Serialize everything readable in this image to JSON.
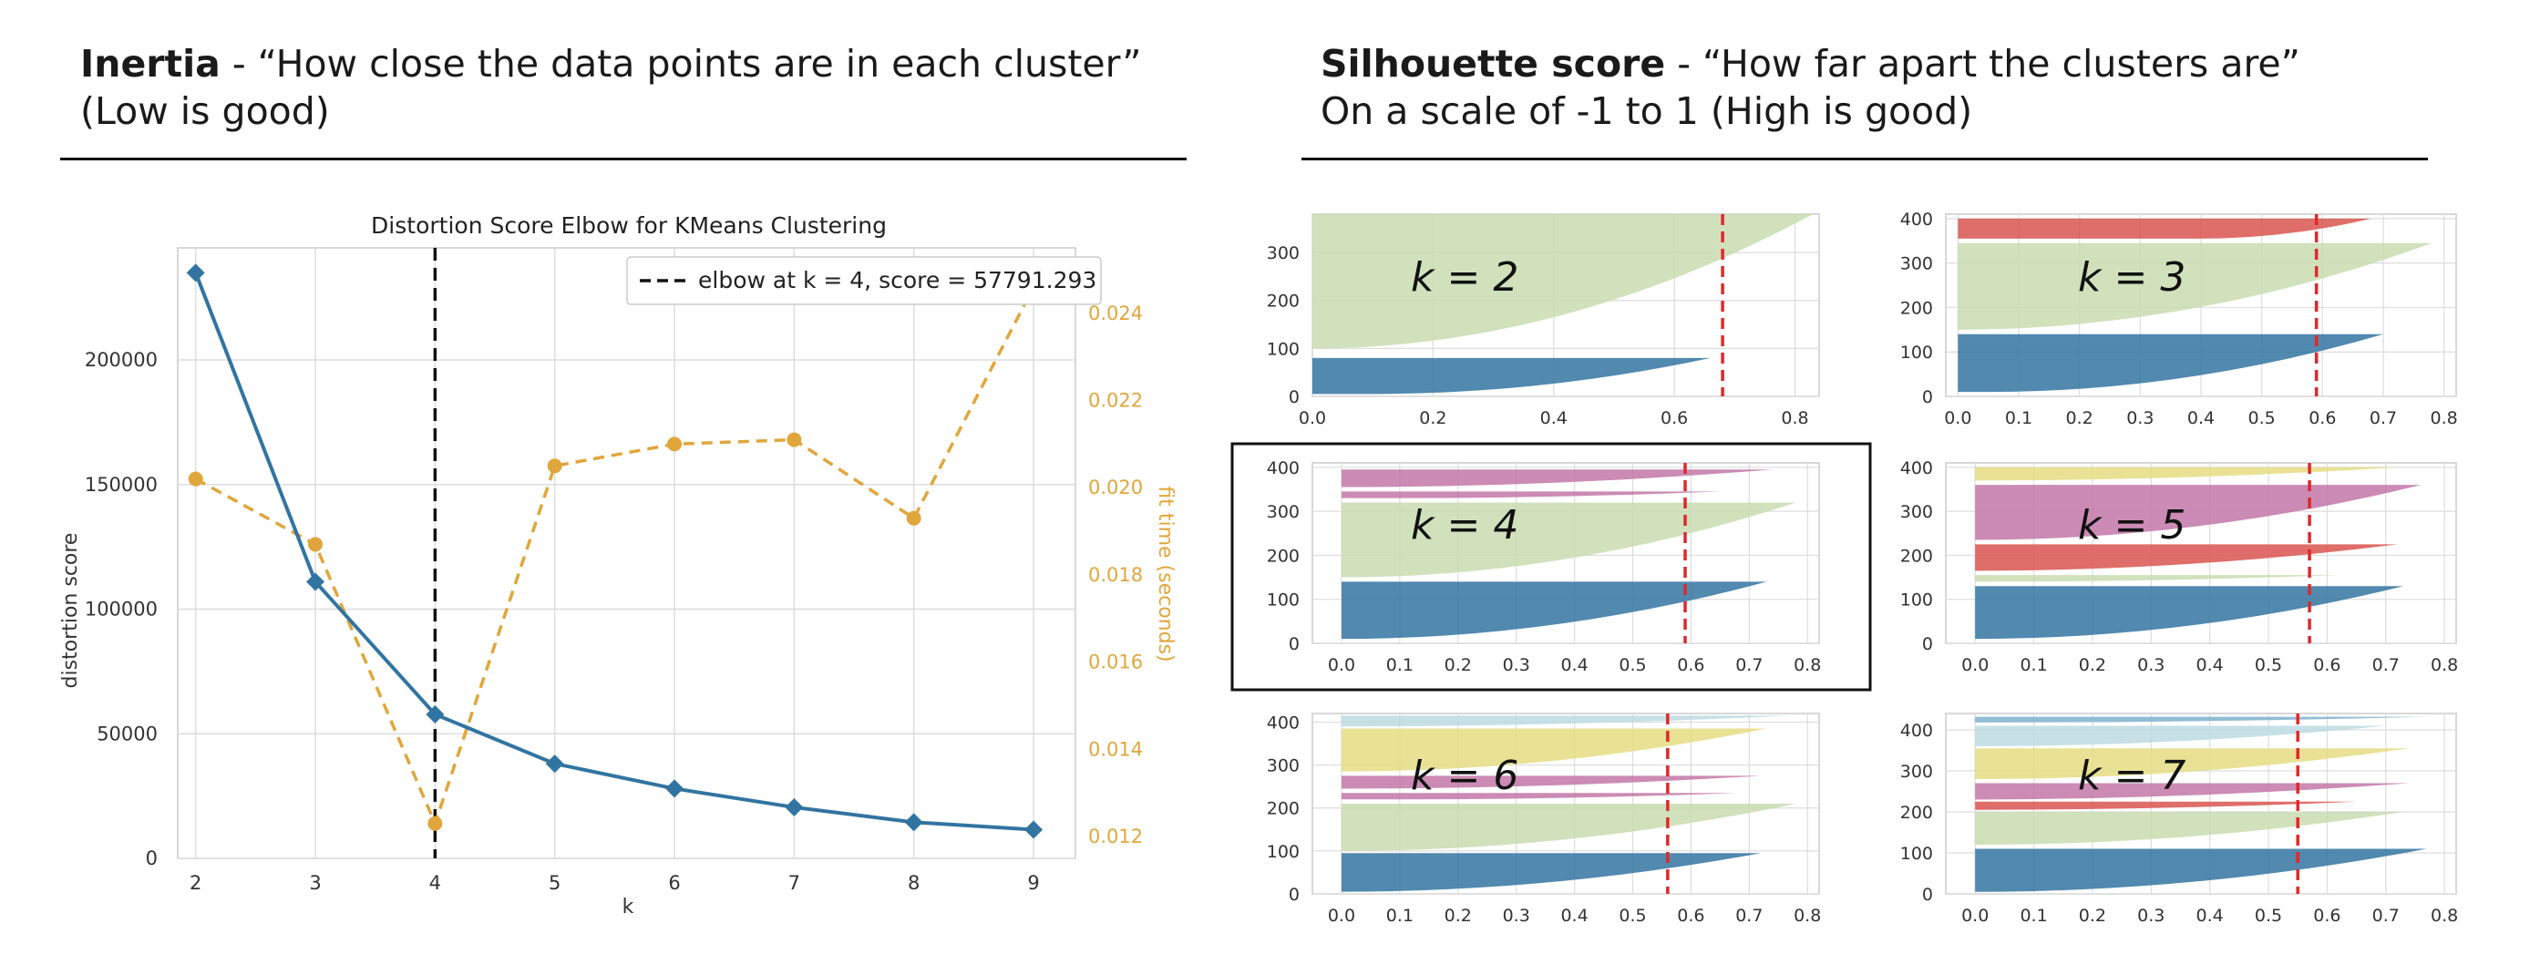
{
  "headers": {
    "left": {
      "bold": "Inertia",
      "rest": " - “How close the data points are in each cluster”",
      "line2": "(Low is good)"
    },
    "right": {
      "bold": "Silhouette score",
      "rest": " - “How far apart the clusters are”",
      "line2": "On a scale of -1 to 1 (High is good)"
    }
  },
  "colors": {
    "blue": "#3274a1",
    "orange": "#e1a63b",
    "green": "#c8dcb0",
    "red": "#d9534f",
    "purple": "#c277a7",
    "yellow": "#e5dd82",
    "teal": "#bcdbe2",
    "lightblue": "#7fb0cc"
  },
  "chart_data": [
    {
      "type": "line",
      "title": "Distortion Score Elbow for KMeans Clustering",
      "xlabel": "k",
      "ylabel": "distortion score",
      "y2label": "fit time (seconds)",
      "x": [
        2,
        3,
        4,
        5,
        6,
        7,
        8,
        9
      ],
      "xticks": [
        "2",
        "3",
        "4",
        "5",
        "6",
        "7",
        "8",
        "9"
      ],
      "yticks": [
        "0",
        "50000",
        "100000",
        "150000",
        "200000"
      ],
      "y2ticks": [
        "0.012",
        "0.014",
        "0.016",
        "0.018",
        "0.020",
        "0.022",
        "0.024"
      ],
      "ylim": [
        0,
        245000
      ],
      "y2lim": [
        0.0115,
        0.0255
      ],
      "series": [
        {
          "name": "distortion score",
          "axis": "left",
          "values": [
            235000,
            111000,
            57791.293,
            38000,
            28000,
            20500,
            14500,
            11500
          ]
        },
        {
          "name": "fit time (seconds)",
          "axis": "right",
          "values": [
            0.0202,
            0.0187,
            0.0123,
            0.0205,
            0.021,
            0.0211,
            0.0193,
            0.0246
          ]
        }
      ],
      "elbow": {
        "k": 4,
        "label": "elbow at k = 4, score = 57791.293"
      },
      "legend": "top-right",
      "grid": true
    },
    {
      "type": "bar",
      "panels": [
        {
          "label": "k = 2",
          "xticks": [
            "0.0",
            "0.2",
            "0.4",
            "0.6",
            "0.8"
          ],
          "xlim": [
            0,
            0.84
          ],
          "yticks": [
            "0",
            "100",
            "200",
            "300"
          ],
          "ylim": [
            0,
            380
          ],
          "avg": 0.68,
          "clusters": [
            {
              "color": "blue",
              "y0": 5,
              "y1": 80,
              "max": 0.66,
              "min": 0.1
            },
            {
              "color": "green",
              "y0": 100,
              "y1": 380,
              "max": 0.83,
              "min": 0.0
            }
          ]
        },
        {
          "label": "k = 3",
          "xticks": [
            "0.0",
            "0.1",
            "0.2",
            "0.3",
            "0.4",
            "0.5",
            "0.6",
            "0.7",
            "0.8"
          ],
          "xlim": [
            -0.02,
            0.82
          ],
          "yticks": [
            "0",
            "100",
            "200",
            "300",
            "400"
          ],
          "ylim": [
            0,
            410
          ],
          "avg": 0.59,
          "clusters": [
            {
              "color": "blue",
              "y0": 10,
              "y1": 140,
              "max": 0.7,
              "min": 0.05
            },
            {
              "color": "green",
              "y0": 150,
              "y1": 345,
              "max": 0.78,
              "min": 0.0
            },
            {
              "color": "red",
              "y0": 355,
              "y1": 400,
              "max": 0.68,
              "min": 0.4
            }
          ]
        },
        {
          "label": "k = 4",
          "xticks": [
            "0.0",
            "0.1",
            "0.2",
            "0.3",
            "0.4",
            "0.5",
            "0.6",
            "0.7",
            "0.8"
          ],
          "xlim": [
            -0.05,
            0.82
          ],
          "yticks": [
            "0",
            "100",
            "200",
            "300",
            "400"
          ],
          "ylim": [
            0,
            410
          ],
          "avg": 0.59,
          "clusters": [
            {
              "color": "blue",
              "y0": 10,
              "y1": 140,
              "max": 0.73,
              "min": 0.0
            },
            {
              "color": "green",
              "y0": 150,
              "y1": 320,
              "max": 0.78,
              "min": 0.0
            },
            {
              "color": "purple",
              "y0": 330,
              "y1": 345,
              "max": 0.65,
              "min": 0.1
            },
            {
              "color": "purple",
              "y0": 355,
              "y1": 395,
              "max": 0.74,
              "min": 0.0
            }
          ]
        },
        {
          "label": "k = 5",
          "xticks": [
            "0.0",
            "0.1",
            "0.2",
            "0.3",
            "0.4",
            "0.5",
            "0.6",
            "0.7",
            "0.8"
          ],
          "xlim": [
            -0.05,
            0.82
          ],
          "yticks": [
            "0",
            "100",
            "200",
            "300",
            "400"
          ],
          "ylim": [
            0,
            410
          ],
          "avg": 0.57,
          "clusters": [
            {
              "color": "blue",
              "y0": 10,
              "y1": 130,
              "max": 0.73,
              "min": 0.0
            },
            {
              "color": "green",
              "y0": 140,
              "y1": 155,
              "max": 0.62,
              "min": 0.0
            },
            {
              "color": "red",
              "y0": 165,
              "y1": 225,
              "max": 0.72,
              "min": 0.0
            },
            {
              "color": "purple",
              "y0": 235,
              "y1": 360,
              "max": 0.76,
              "min": 0.0
            },
            {
              "color": "yellow",
              "y0": 370,
              "y1": 400,
              "max": 0.72,
              "min": 0.0
            }
          ]
        },
        {
          "label": "k = 6",
          "xticks": [
            "0.0",
            "0.1",
            "0.2",
            "0.3",
            "0.4",
            "0.5",
            "0.6",
            "0.7",
            "0.8"
          ],
          "xlim": [
            -0.05,
            0.82
          ],
          "yticks": [
            "0",
            "100",
            "200",
            "300",
            "400"
          ],
          "ylim": [
            0,
            420
          ],
          "avg": 0.56,
          "clusters": [
            {
              "color": "blue",
              "y0": 5,
              "y1": 95,
              "max": 0.72,
              "min": 0.0
            },
            {
              "color": "green",
              "y0": 100,
              "y1": 210,
              "max": 0.78,
              "min": 0.0
            },
            {
              "color": "purple",
              "y0": 220,
              "y1": 235,
              "max": 0.68,
              "min": 0.1
            },
            {
              "color": "purple",
              "y0": 245,
              "y1": 275,
              "max": 0.72,
              "min": 0.0
            },
            {
              "color": "yellow",
              "y0": 285,
              "y1": 385,
              "max": 0.73,
              "min": 0.0
            },
            {
              "color": "teal",
              "y0": 390,
              "y1": 415,
              "max": 0.77,
              "min": 0.0
            }
          ]
        },
        {
          "label": "k = 7",
          "xticks": [
            "0.0",
            "0.1",
            "0.2",
            "0.3",
            "0.4",
            "0.5",
            "0.6",
            "0.7",
            "0.8"
          ],
          "xlim": [
            -0.05,
            0.82
          ],
          "yticks": [
            "0",
            "100",
            "200",
            "300",
            "400"
          ],
          "ylim": [
            0,
            440
          ],
          "avg": 0.55,
          "clusters": [
            {
              "color": "blue",
              "y0": 5,
              "y1": 110,
              "max": 0.77,
              "min": 0.0
            },
            {
              "color": "green",
              "y0": 120,
              "y1": 200,
              "max": 0.73,
              "min": 0.0
            },
            {
              "color": "red",
              "y0": 205,
              "y1": 225,
              "max": 0.65,
              "min": 0.0
            },
            {
              "color": "purple",
              "y0": 230,
              "y1": 270,
              "max": 0.74,
              "min": -0.02
            },
            {
              "color": "yellow",
              "y0": 280,
              "y1": 355,
              "max": 0.74,
              "min": 0.0
            },
            {
              "color": "teal",
              "y0": 360,
              "y1": 410,
              "max": 0.7,
              "min": 0.0
            },
            {
              "color": "lightblue",
              "y0": 418,
              "y1": 432,
              "max": 0.77,
              "min": 0.0
            }
          ]
        }
      ]
    }
  ]
}
